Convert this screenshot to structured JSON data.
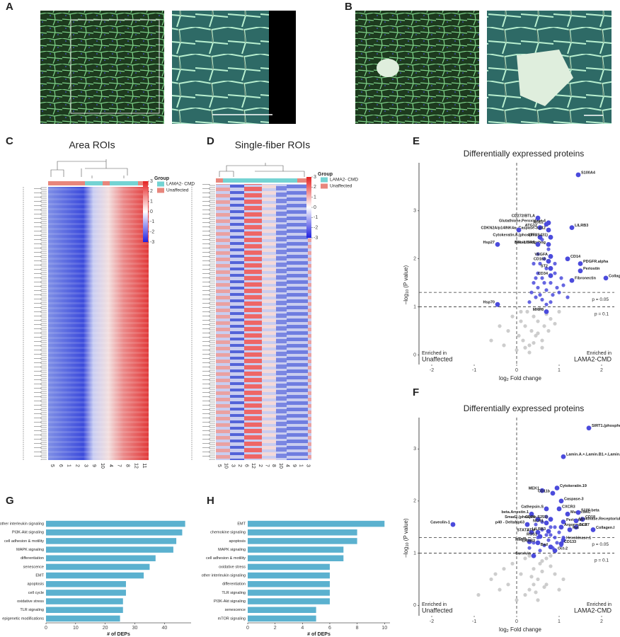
{
  "panel_labels": [
    "A",
    "B",
    "C",
    "D",
    "E",
    "F",
    "G",
    "H"
  ],
  "heatmaps": [
    {
      "title": "Area ROIs",
      "legend_title": "Group",
      "groups": [
        {
          "name": "LAMA2- CMD",
          "color": "#74d3d3"
        },
        {
          "name": "Unaffected",
          "color": "#e8867c"
        }
      ],
      "colorbar_ticks": [
        3,
        2,
        1,
        0,
        -1,
        -2,
        -3
      ],
      "columns": [
        "5",
        "6",
        "1",
        "2",
        "3",
        "9",
        "10",
        "4",
        "7",
        "8",
        "12",
        "11"
      ]
    },
    {
      "title": "Single-fiber ROIs",
      "legend_title": "Group",
      "groups": [
        {
          "name": "LAMA2- CMD",
          "color": "#74d3d3"
        },
        {
          "name": "Unaffected",
          "color": "#e8867c"
        }
      ],
      "colorbar_ticks": [
        3,
        2,
        1,
        0,
        -1,
        -2,
        -3
      ],
      "columns": [
        "5",
        "10",
        "3",
        "2",
        "6",
        "12",
        "2",
        "7",
        "8",
        "10",
        "4",
        "9",
        "1",
        "3"
      ]
    }
  ],
  "chart_data": [
    {
      "type": "scatter",
      "title": "Differentially expressed proteins",
      "x_label": {
        "base": "log",
        "sub": "2",
        "rest": " Fold change"
      },
      "y_label": {
        "base": "–log",
        "sub": "10",
        "rest": " (P value)"
      },
      "xlim": [
        -2.3,
        2.3
      ],
      "ylim": [
        -0.2,
        4
      ],
      "xticks": [
        -2,
        -1,
        0,
        1,
        2
      ],
      "yticks": [
        0,
        1,
        2,
        3
      ],
      "thresholds": [
        {
          "value": 1.301,
          "label": "p = 0.05"
        },
        {
          "value": 1,
          "label": "p = 0.1"
        }
      ],
      "left_note": [
        "Enriched in",
        "Unaffected"
      ],
      "right_note": [
        "Enriched in",
        "LAMA2-CMD"
      ],
      "series": [
        {
          "color": "#c4c4c4",
          "x": [
            -0.6,
            -0.4,
            -0.3,
            -0.2,
            -0.1,
            0,
            0.05,
            0.1,
            0.15,
            0.2,
            0.25,
            0.3,
            0.35,
            0.4,
            0.45,
            0.5,
            0.55,
            0.6,
            0.65,
            0.7,
            0.75,
            0.8,
            0.9,
            1.0,
            0.3,
            0.2,
            0.1,
            0.4,
            0.5,
            0.6
          ],
          "y": [
            0.3,
            0.6,
            0.2,
            0.5,
            0.8,
            0.1,
            0.4,
            0.7,
            0.3,
            0.6,
            0.9,
            0.2,
            0.5,
            0.8,
            0.4,
            0.7,
            0.95,
            0.3,
            0.6,
            0.85,
            0.5,
            0.75,
            0.65,
            0.9,
            0.05,
            0.15,
            0.9,
            0.25,
            0.45,
            0.15
          ]
        },
        {
          "color": "#4b4bdc",
          "x": [
            0.3,
            0.35,
            0.4,
            0.45,
            0.5,
            0.5,
            0.55,
            0.6,
            0.6,
            0.65,
            0.7,
            0.7,
            0.75,
            0.8,
            0.85,
            0.9,
            0.95,
            1.0,
            1.1,
            1.2,
            0.4,
            0.5,
            0.6,
            0.7,
            0.8,
            0.45,
            0.55,
            0.65,
            0.9,
            1.05
          ],
          "y": [
            1.1,
            1.3,
            1.5,
            1.2,
            1.7,
            1.4,
            1.9,
            1.6,
            1.15,
            2.0,
            1.35,
            1.8,
            2.2,
            1.5,
            1.25,
            1.7,
            1.4,
            1.3,
            1.45,
            1.2,
            1.9,
            2.1,
            2.4,
            1.05,
            1.1,
            1.6,
            1.25,
            1.5,
            1.9,
            1.6
          ]
        }
      ],
      "labeled": {
        "color": "#4b4bdc",
        "names": [
          "S100A4",
          "Glutathione.Peroxidase.4",
          "CD272/BTLA",
          "ACE2",
          "ATG12",
          "Caspase-3.p12",
          "LILRB3",
          "CDKN2A/p14INK4a",
          "ATF3",
          "Cytokeratin.8.(phospho.S431)",
          "Sonic.Hedgehog",
          "BFL-1/GRS",
          "Hsp27",
          "VEGFA",
          "CD14",
          "CD163",
          "PDGFR.alpha",
          "ST2",
          "Periostin",
          "CD34",
          "Collagen.I",
          "Fibronectin",
          "Hsp70",
          "MRP8"
        ],
        "x": [
          1.45,
          0.75,
          0.5,
          0.7,
          0.55,
          0.75,
          1.3,
          0.05,
          0.55,
          0.8,
          0.75,
          0.5,
          -0.45,
          0.8,
          1.2,
          0.75,
          1.5,
          0.8,
          1.5,
          0.8,
          2.1,
          1.3,
          -0.45,
          0.7
        ],
        "y": [
          3.75,
          2.75,
          2.85,
          2.72,
          2.65,
          2.6,
          2.65,
          2.6,
          2.45,
          2.45,
          2.3,
          2.3,
          2.3,
          2.05,
          2.0,
          1.95,
          1.9,
          1.8,
          1.75,
          1.65,
          1.6,
          1.55,
          1.05,
          0.9
        ]
      }
    },
    {
      "type": "scatter",
      "title": "Differentially expressed proteins",
      "x_label": {
        "base": "log",
        "sub": "2",
        "rest": " Fold change"
      },
      "y_label": {
        "base": "–log",
        "sub": "10",
        "rest": " (P value)"
      },
      "xlim": [
        -2.3,
        2.3
      ],
      "ylim": [
        -0.2,
        3.6
      ],
      "xticks": [
        -2,
        -1,
        0,
        1,
        2
      ],
      "yticks": [
        0,
        1,
        2,
        3
      ],
      "thresholds": [
        {
          "value": 1.301,
          "label": "p = 0.05"
        },
        {
          "value": 1,
          "label": "p = 0.1"
        }
      ],
      "left_note": [
        "Enriched in",
        "Unaffected"
      ],
      "right_note": [
        "Enriched in",
        "LAMA2-CMD"
      ],
      "series": [
        {
          "color": "#c4c4c4",
          "x": [
            -0.9,
            -0.6,
            -0.4,
            -0.3,
            -0.2,
            -0.1,
            0,
            0.1,
            0.2,
            0.3,
            0.4,
            0.5,
            0.6,
            0.7,
            0.8,
            0.9,
            1.0,
            1.1,
            0.2,
            0.3,
            0.4,
            0.5,
            0.6,
            0.7,
            0.8,
            0.35,
            0.45,
            0.55,
            0.65,
            -0.5
          ],
          "y": [
            0.2,
            0.5,
            0.3,
            0.7,
            0.4,
            0.8,
            0.1,
            0.6,
            0.9,
            0.3,
            0.7,
            0.5,
            0.85,
            0.4,
            0.75,
            0.6,
            0.3,
            0.5,
            0.2,
            0.95,
            0.4,
            0.1,
            0.65,
            0.9,
            0.95,
            0.55,
            0.25,
            0.8,
            0.35,
            0.6
          ]
        },
        {
          "color": "#4b4bdc",
          "x": [
            0.3,
            0.4,
            0.5,
            0.55,
            0.6,
            0.65,
            0.7,
            0.75,
            0.8,
            0.85,
            0.9,
            0.95,
            1.0,
            1.05,
            0.45,
            0.6,
            0.7,
            0.8,
            0.9,
            1.1
          ],
          "y": [
            1.1,
            1.2,
            1.3,
            1.05,
            1.45,
            1.15,
            1.35,
            1.25,
            1.5,
            1.1,
            1.3,
            1.2,
            1.4,
            1.15,
            1.55,
            1.6,
            1.7,
            1.35,
            1.5,
            1.3
          ]
        }
      ],
      "labeled": {
        "color": "#4b4bdc",
        "names": [
          "SIRT1.(phospho.S47)",
          "Lamin.A.+.Lamin.B1.+.Lamin.C",
          "Cytokeratin.19",
          "MEK1",
          "CD11b",
          "Caspase-3",
          "CXCR3",
          "Cathepsin.S",
          "beta.Arrestin.1",
          "Mucin.5AC",
          "S100.beta",
          "CD18",
          "CD38",
          "Smad2.(phospho.S255)",
          "Periostin",
          "Urokinase.Receptor/uPAR",
          "NCR1",
          "p40 - DeltaNp63",
          "Argonaute.2",
          "CCR7",
          "Caveolin-1",
          "Ret",
          "Collagen.I",
          "STAT2",
          "ATM",
          "LILRB3",
          "ROS1",
          "Hexokinase.1",
          "CD133",
          "MMP9",
          "ERBB3",
          "Bad",
          "Oct-2",
          "Survivin"
        ],
        "x": [
          1.7,
          1.1,
          0.95,
          0.6,
          0.85,
          1.05,
          1.0,
          0.7,
          0.35,
          1.2,
          1.45,
          1.55,
          0.5,
          0.8,
          1.1,
          1.4,
          0.7,
          0.25,
          1.05,
          1.4,
          -1.5,
          1.25,
          1.8,
          0.35,
          0.5,
          0.75,
          0.55,
          1.1,
          1.05,
          0.3,
          0.5,
          0.8,
          0.9,
          0.4
        ],
        "y": [
          3.4,
          2.85,
          2.25,
          2.2,
          2.15,
          2.0,
          1.85,
          1.85,
          1.75,
          1.75,
          1.78,
          1.65,
          1.65,
          1.65,
          1.6,
          1.62,
          1.58,
          1.55,
          1.5,
          1.5,
          1.55,
          1.45,
          1.45,
          1.4,
          1.4,
          1.42,
          1.32,
          1.25,
          1.18,
          1.22,
          1.2,
          1.12,
          1.05,
          0.95
        ]
      }
    },
    {
      "type": "bar",
      "orientation": "horizontal",
      "color": "#5bb1cf",
      "x_label": "# of DEPs",
      "categories": [
        "other interleukin signaling",
        "PI3K-Akt signaling",
        "cell adhesion & motility",
        "MAPK signaling",
        "differentiation",
        "senescence",
        "EMT",
        "apoptosis",
        "cell cycle",
        "oxidative stress",
        "TLR signaling",
        "epigenetic modifications"
      ],
      "values": [
        47,
        46,
        44,
        43,
        37,
        35,
        33,
        27,
        27,
        26,
        26,
        25
      ],
      "xlim": [
        0,
        49
      ],
      "xticks": [
        0,
        10,
        20,
        30,
        40
      ]
    },
    {
      "type": "bar",
      "orientation": "horizontal",
      "color": "#5bb1cf",
      "x_label": "# of DEPs",
      "categories": [
        "EMT",
        "chemokine signaling",
        "apoptosis",
        "MAPK signaling",
        "cell adhesion & motility",
        "oxidative stress",
        "other interleukin signaling",
        "differentiation",
        "TLR signaling",
        "PI3K-Akt signaling",
        "senescence",
        "mTOR signaling"
      ],
      "values": [
        10,
        8,
        8,
        7,
        7,
        6,
        6,
        6,
        6,
        6,
        5,
        5
      ],
      "xlim": [
        0,
        10.4
      ],
      "xticks": [
        0,
        2,
        4,
        6,
        8,
        10
      ]
    }
  ]
}
